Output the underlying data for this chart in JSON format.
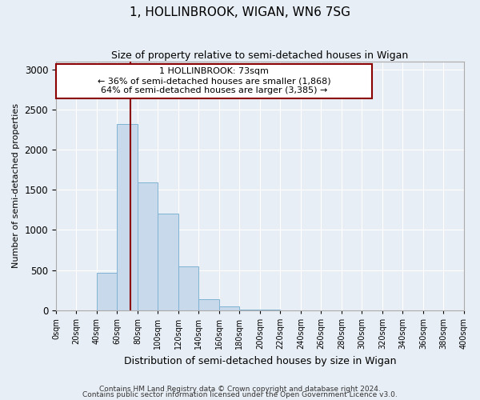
{
  "title": "1, HOLLINBROOK, WIGAN, WN6 7SG",
  "subtitle": "Size of property relative to semi-detached houses in Wigan",
  "xlabel": "Distribution of semi-detached houses by size in Wigan",
  "ylabel": "Number of semi-detached properties",
  "footnote1": "Contains HM Land Registry data © Crown copyright and database right 2024.",
  "footnote2": "Contains public sector information licensed under the Open Government Licence v3.0.",
  "property_size": 73,
  "property_label": "1 HOLLINBROOK: 73sqm",
  "smaller_pct": 36,
  "smaller_count": 1868,
  "larger_pct": 64,
  "larger_count": 3385,
  "bin_edges": [
    0,
    20,
    40,
    60,
    80,
    100,
    120,
    140,
    160,
    180,
    200,
    220,
    240,
    260,
    280,
    300,
    320,
    340,
    360,
    380,
    400
  ],
  "bar_heights": [
    0,
    2,
    470,
    2320,
    1590,
    1200,
    550,
    140,
    50,
    10,
    5,
    2,
    0,
    0,
    0,
    0,
    0,
    0,
    0,
    0
  ],
  "bar_color": "#c8d9eb",
  "bar_edge_color": "#7fb3d3",
  "line_color": "#8b0000",
  "annotation_box_color": "#8b0000",
  "background_color": "#e8eef5",
  "ylim": [
    0,
    3100
  ],
  "xlim": [
    0,
    400
  ]
}
